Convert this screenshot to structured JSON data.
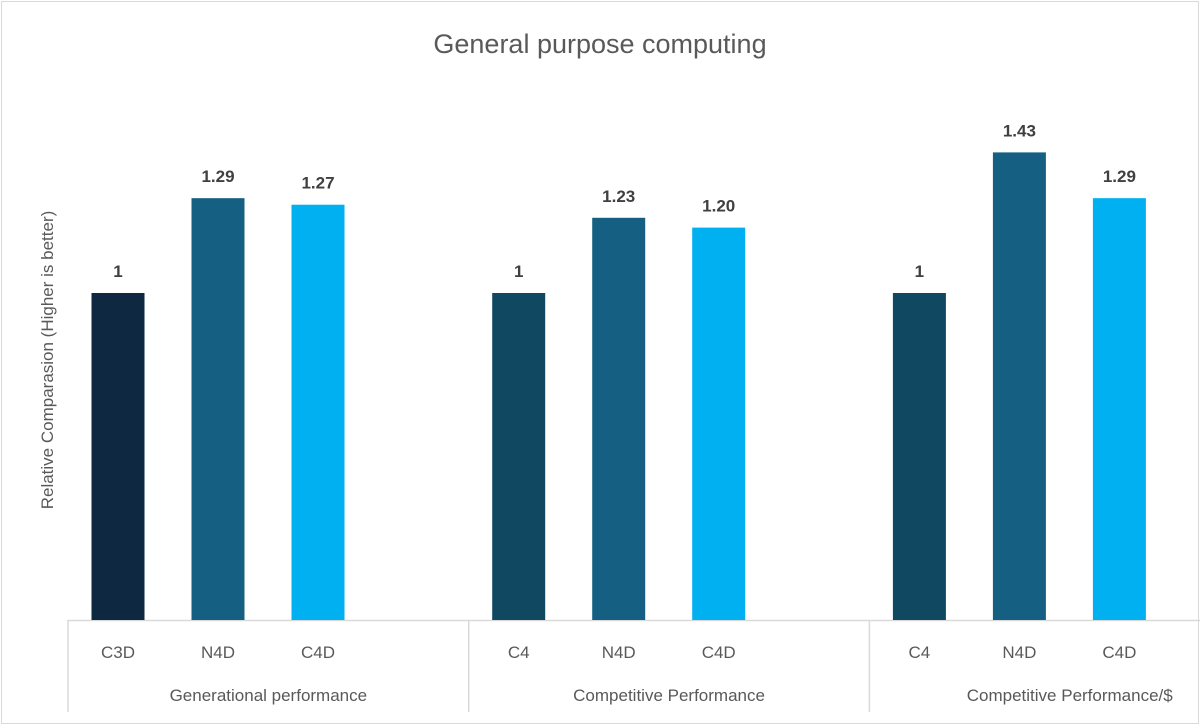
{
  "chart_data": {
    "type": "bar",
    "title": "General purpose computing",
    "ylabel": "Relative Comparasion (Higher is better)",
    "xlabel": "",
    "ylim": [
      0,
      1.9
    ],
    "grid": false,
    "legend": "none",
    "groups": [
      {
        "label": "Generational performance",
        "categories": [
          "C3D",
          "N4D",
          "C4D"
        ],
        "values": [
          1,
          1.29,
          1.27
        ],
        "labels": [
          "1",
          "1.29",
          "1.27"
        ],
        "colors": [
          "#0e2841",
          "#156082",
          "#00b0f0"
        ]
      },
      {
        "label": "Competitive Performance",
        "categories": [
          "C4",
          "N4D",
          "C4D"
        ],
        "values": [
          1,
          1.23,
          1.2
        ],
        "labels": [
          "1",
          "1.23",
          "1.20"
        ],
        "colors": [
          "#104862",
          "#156082",
          "#00b0f0"
        ]
      },
      {
        "label": "Competitive Performance/$",
        "categories": [
          "C4",
          "N4D",
          "C4D"
        ],
        "values": [
          1,
          1.43,
          1.29
        ],
        "labels": [
          "1",
          "1.43",
          "1.29"
        ],
        "colors": [
          "#104862",
          "#156082",
          "#00b0f0"
        ]
      }
    ]
  }
}
